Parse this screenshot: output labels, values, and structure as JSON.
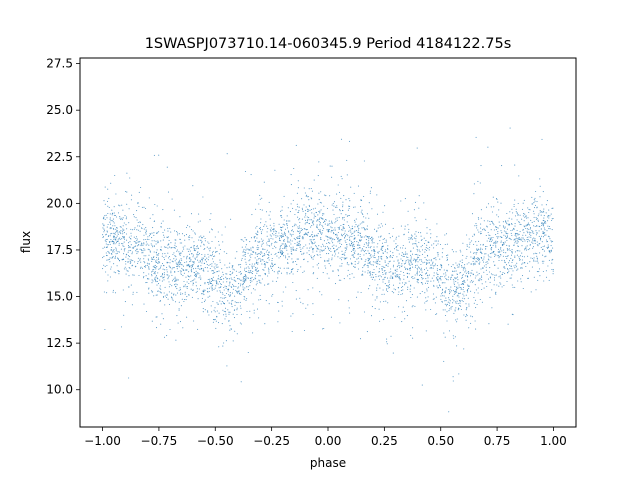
{
  "chart_data": {
    "type": "scatter",
    "title": "1SWASPJ073710.14-060345.9 Period 4184122.75s",
    "xlabel": "phase",
    "ylabel": "flux",
    "xlim": [
      -1.1,
      1.1
    ],
    "ylim": [
      8.0,
      27.8
    ],
    "xticks": [
      -1.0,
      -0.75,
      -0.5,
      -0.25,
      0.0,
      0.25,
      0.5,
      0.75,
      1.0
    ],
    "xtick_labels": [
      "−1.00",
      "−0.75",
      "−0.50",
      "−0.25",
      "0.00",
      "0.25",
      "0.50",
      "0.75",
      "1.00"
    ],
    "yticks": [
      10.0,
      12.5,
      15.0,
      17.5,
      20.0,
      22.5,
      25.0,
      27.5
    ],
    "ytick_labels": [
      "10.0",
      "12.5",
      "15.0",
      "17.5",
      "20.0",
      "22.5",
      "25.0",
      "27.5"
    ],
    "grid": false,
    "marker_color": "#1f77b4",
    "folded_profile": {
      "phase": [
        0.0,
        0.05,
        0.1,
        0.15,
        0.2,
        0.25,
        0.3,
        0.35,
        0.4,
        0.45,
        0.5,
        0.55,
        0.6,
        0.65,
        0.7,
        0.75,
        0.8,
        0.85,
        0.9,
        0.95,
        1.0
      ],
      "flux": [
        18.0,
        18.3,
        17.8,
        17.8,
        17.0,
        16.9,
        16.5,
        16.6,
        17.0,
        16.5,
        15.8,
        15.0,
        15.5,
        16.8,
        17.2,
        17.5,
        17.8,
        18.0,
        18.6,
        18.5,
        18.0
      ]
    }
  }
}
